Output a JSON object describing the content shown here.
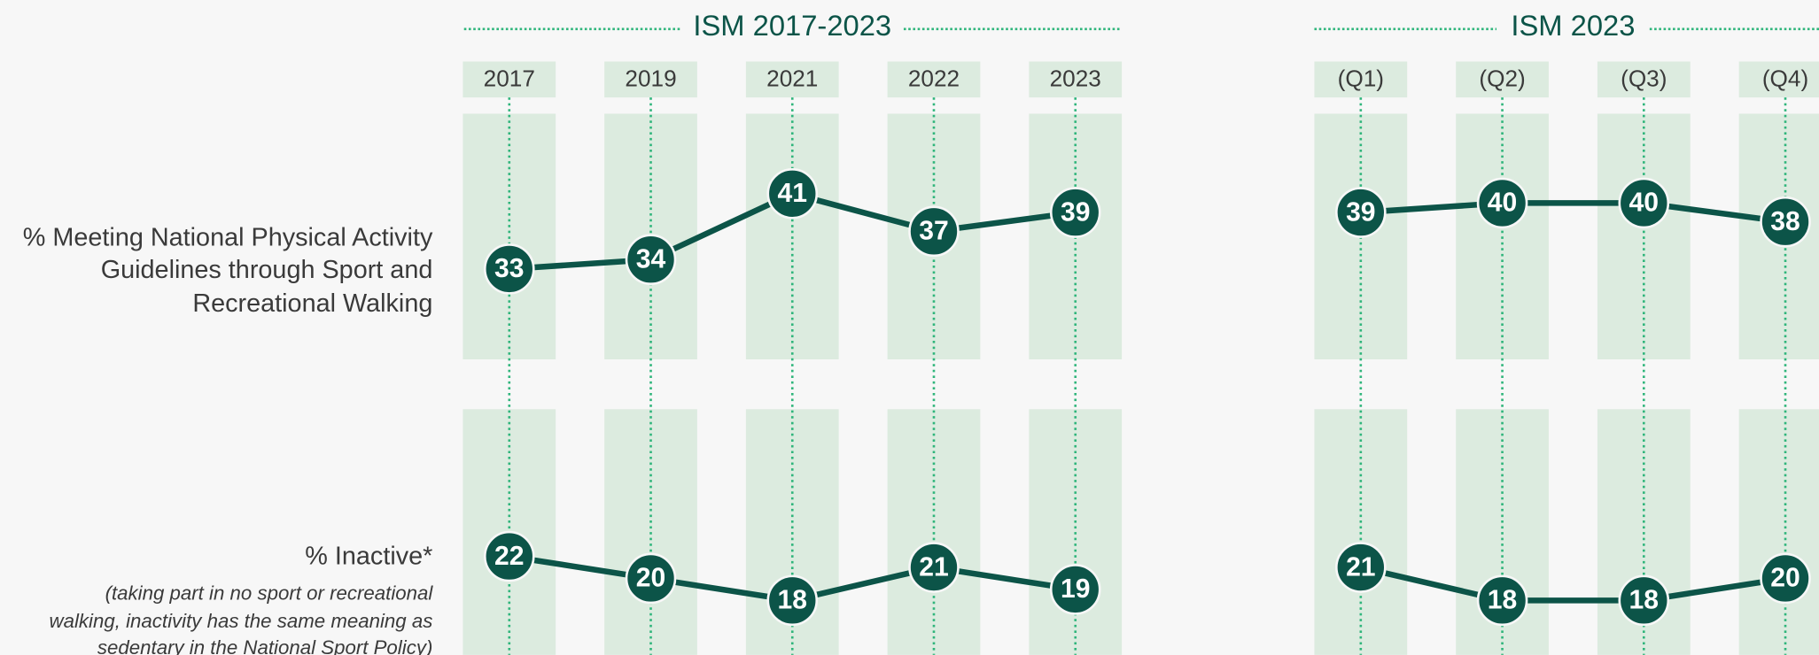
{
  "chart_data": [
    {
      "type": "line",
      "title": "ISM 2017-2023",
      "categories": [
        "2017",
        "2019",
        "2021",
        "2022",
        "2023"
      ],
      "color": "#0c5448",
      "series": [
        {
          "values": [
            33,
            34,
            41,
            37,
            39
          ]
        },
        {
          "values": [
            22,
            20,
            18,
            21,
            19
          ]
        }
      ]
    },
    {
      "type": "line",
      "title": "ISM 2023",
      "categories": [
        "(Q1)",
        "(Q2)",
        "(Q3)",
        "(Q4)"
      ],
      "color": "#0c5448",
      "series": [
        {
          "values": [
            39,
            40,
            40,
            38
          ]
        },
        {
          "values": [
            21,
            18,
            18,
            20
          ]
        }
      ]
    }
  ],
  "rows": [
    {
      "label_lines": [
        "% Meeting National Physical Activity",
        "Guidelines through Sport and",
        "Recreational Walking"
      ]
    },
    {
      "label_lines": [
        "% Inactive*"
      ],
      "note_lines": [
        "(taking part in no sport or recreational",
        "walking, inactivity has the same meaning as",
        "sedentary in the National Sport Policy)"
      ]
    }
  ]
}
